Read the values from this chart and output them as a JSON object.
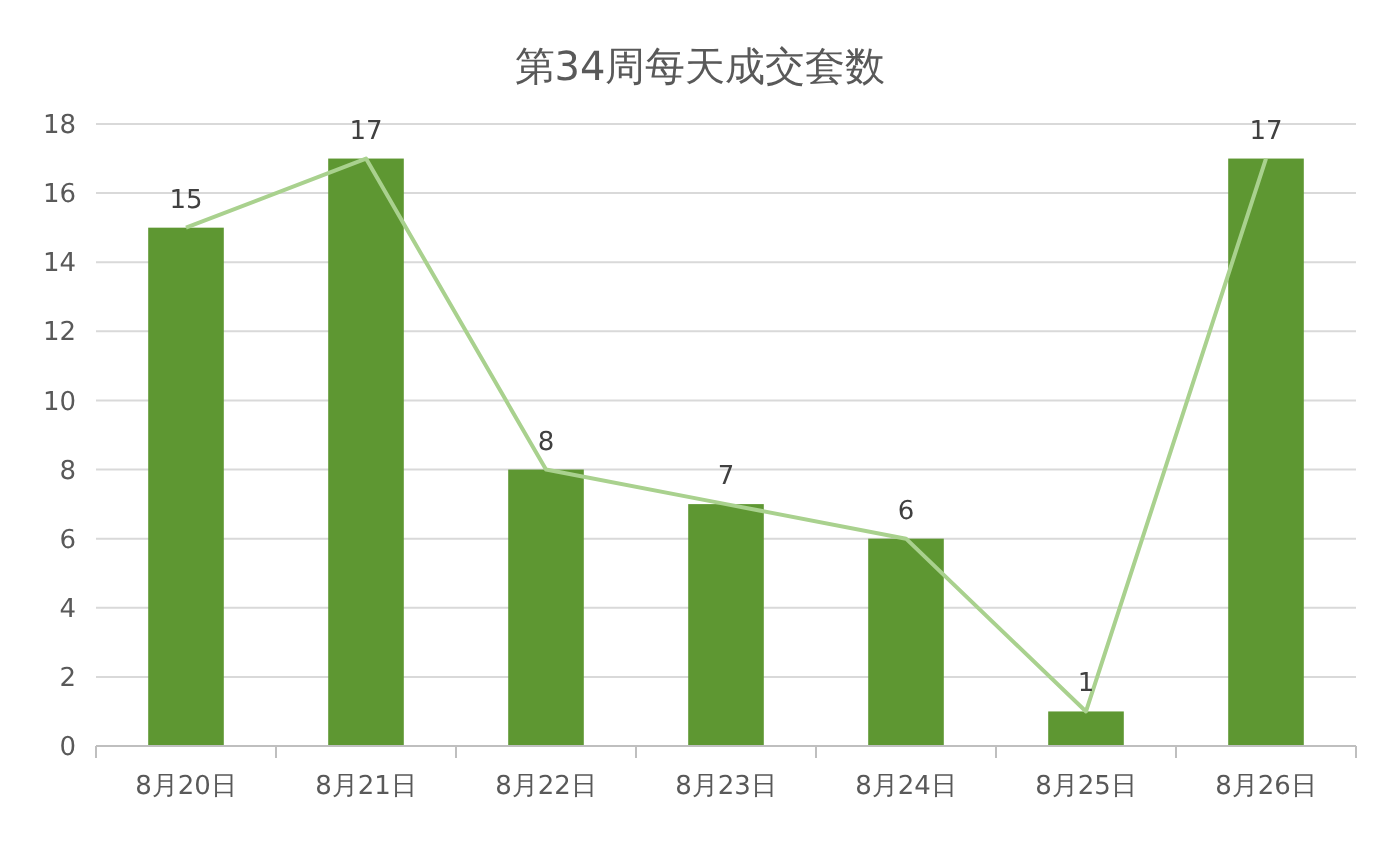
{
  "chart_data": {
    "type": "bar",
    "title": "第34周每天成交套数",
    "categories": [
      "8月20日",
      "8月21日",
      "8月22日",
      "8月23日",
      "8月24日",
      "8月25日",
      "8月26日"
    ],
    "series": [
      {
        "color": "#5e9732",
        "values": [
          15,
          17,
          8,
          7,
          6,
          1,
          17
        ],
        "value_labels": [
          "15",
          "17",
          "8",
          "7",
          "6",
          "1",
          "17"
        ]
      },
      {
        "type": "line",
        "color": "#a9d18e",
        "values": [
          15,
          17,
          8,
          7,
          6,
          1,
          17
        ]
      }
    ],
    "ylim": [
      0,
      18
    ],
    "yticks": [
      0,
      2,
      4,
      6,
      8,
      10,
      12,
      14,
      16,
      18
    ],
    "grid": "y",
    "marker": "none"
  }
}
